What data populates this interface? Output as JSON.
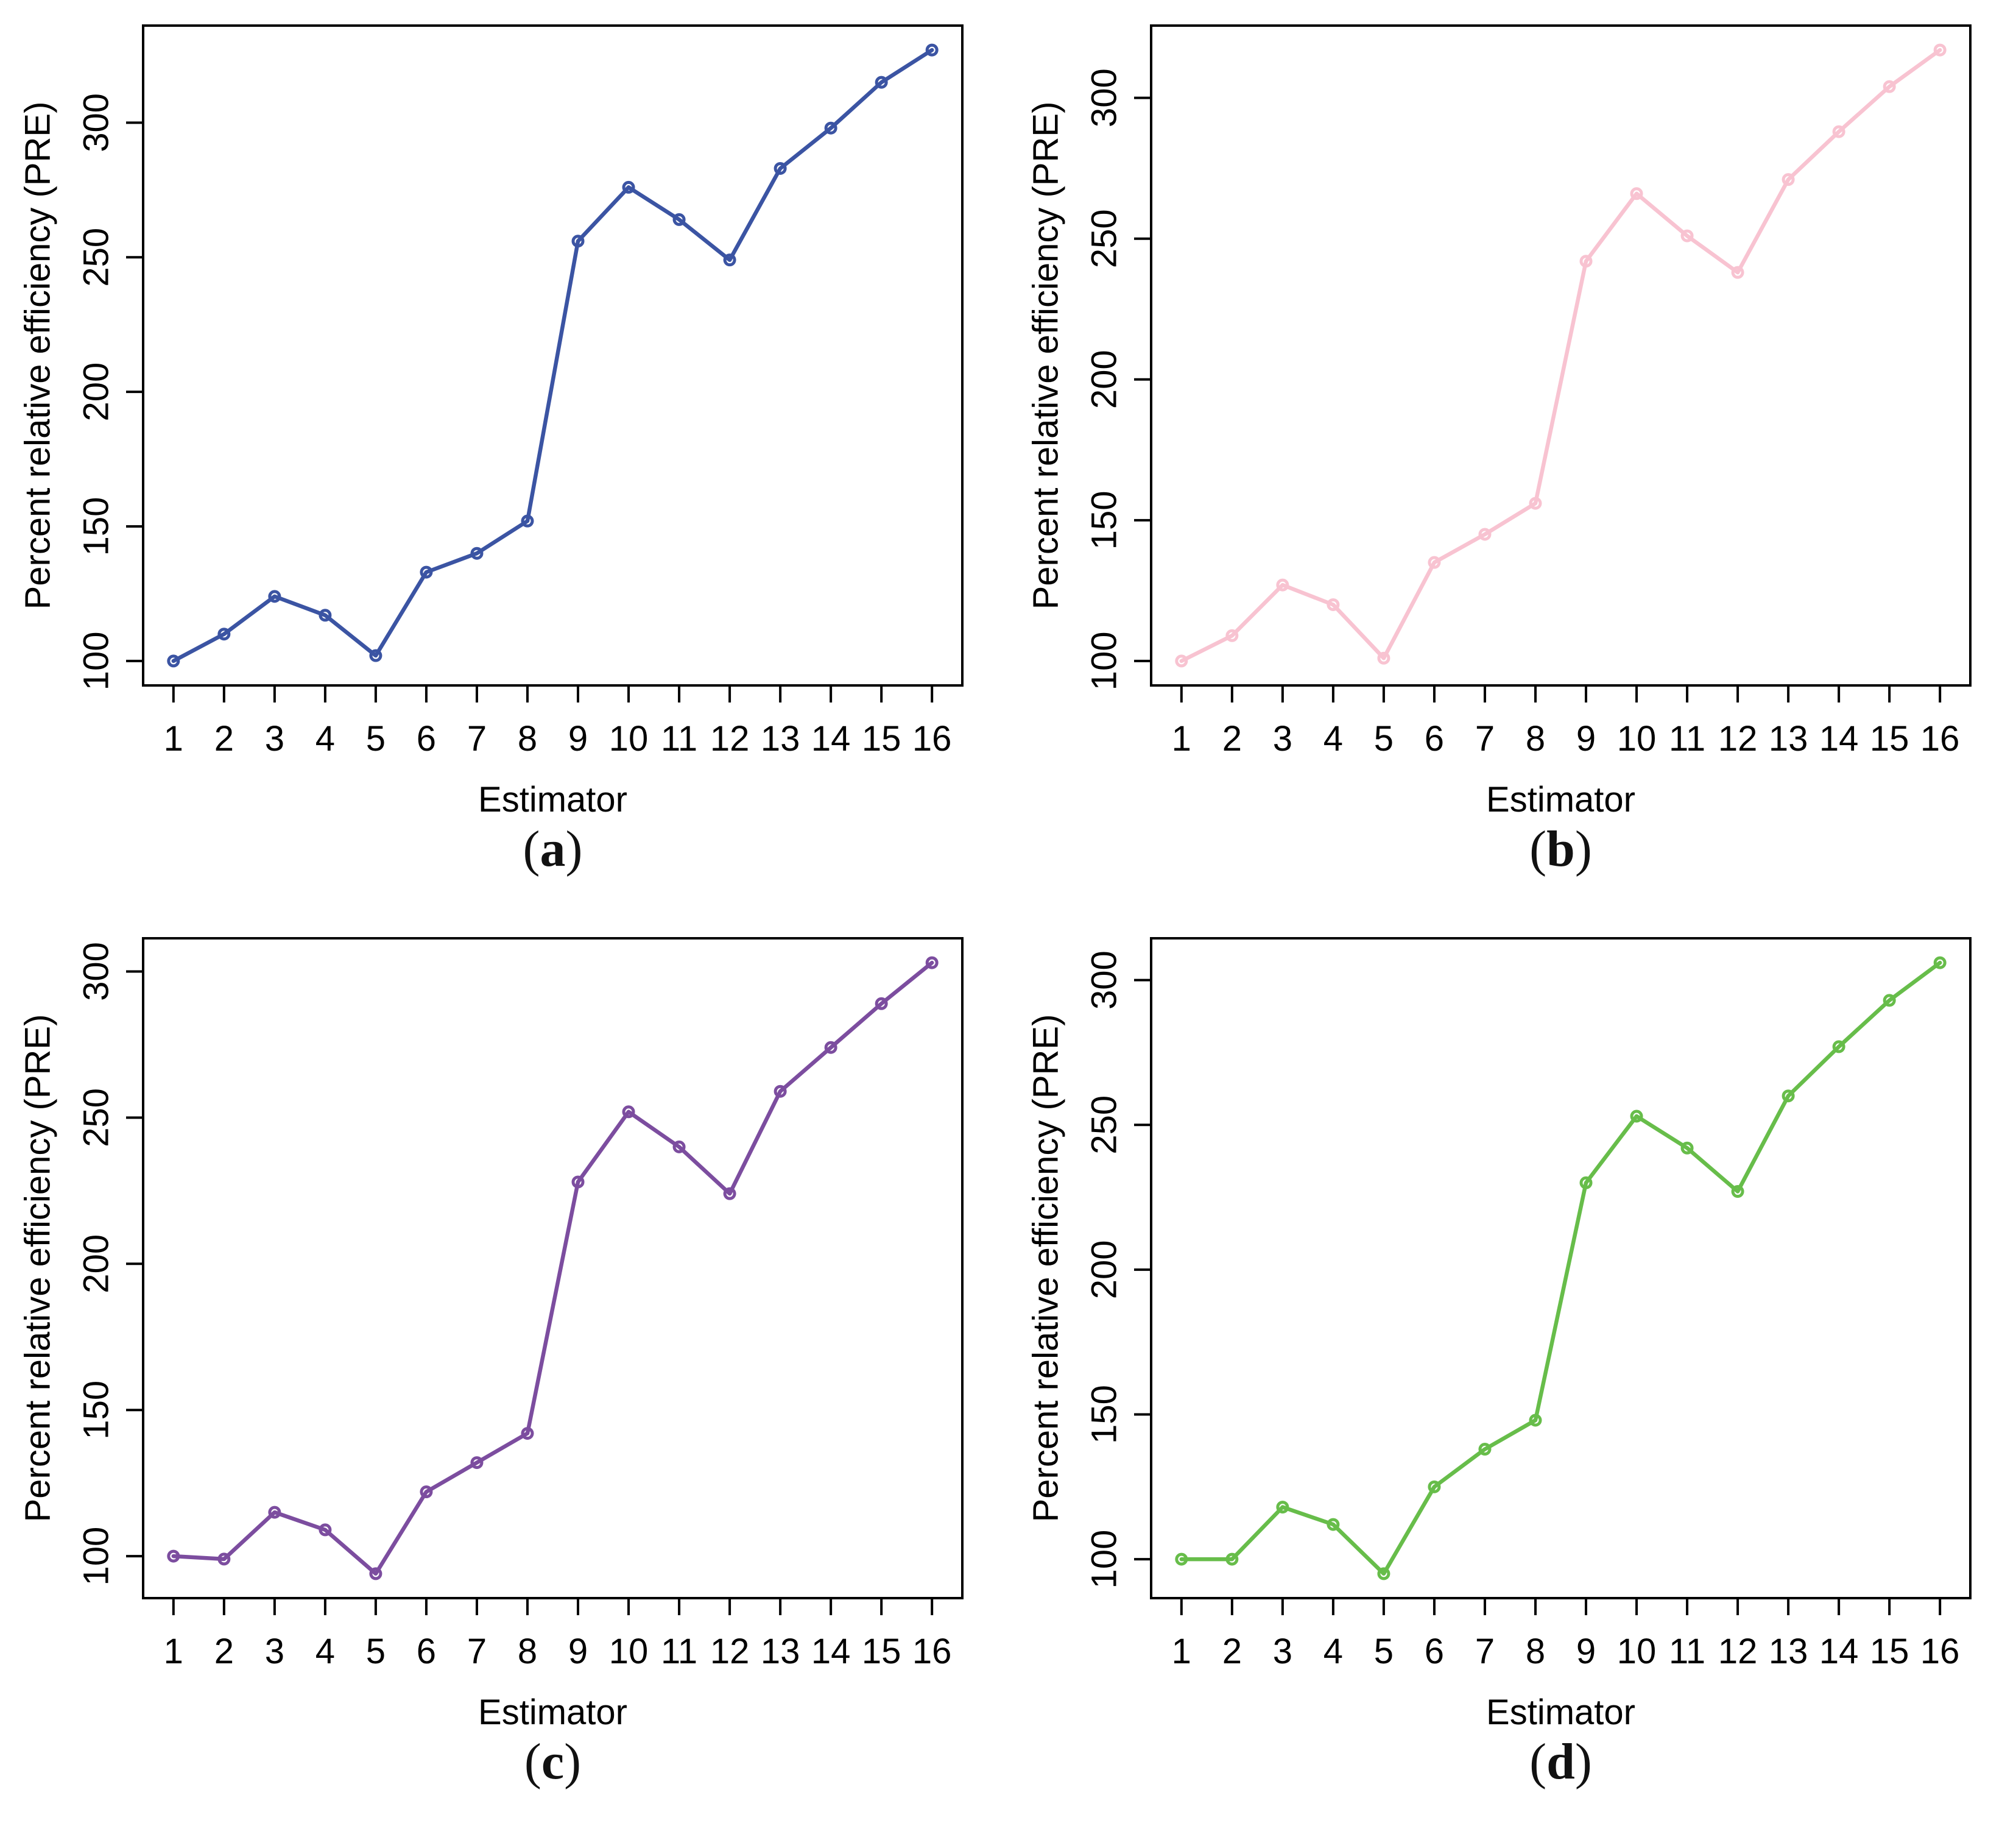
{
  "figure": {
    "caption_open": "(",
    "caption_close": ")",
    "axis_padding_frac": 0.04
  },
  "chart_data": [
    {
      "type": "line",
      "panel": "a",
      "color": "#3B54A3",
      "marker": "open-circle",
      "title": "",
      "xlabel": "Estimator",
      "ylabel": "Percent relative efficiency (PRE)",
      "x": [
        1,
        2,
        3,
        4,
        5,
        6,
        7,
        8,
        9,
        10,
        11,
        12,
        13,
        14,
        15,
        16
      ],
      "values": [
        100,
        110,
        124,
        117,
        102,
        133,
        140,
        152,
        256,
        276,
        264,
        249,
        283,
        298,
        315,
        327
      ],
      "xticks": [
        1,
        2,
        3,
        4,
        5,
        6,
        7,
        8,
        9,
        10,
        11,
        12,
        13,
        14,
        15,
        16
      ],
      "yticks": [
        100,
        150,
        200,
        250,
        300
      ],
      "xlim": [
        0.4,
        16.6
      ],
      "grid": false,
      "legend": null
    },
    {
      "type": "line",
      "panel": "b",
      "color": "#F8C3D1",
      "marker": "open-circle",
      "title": "",
      "xlabel": "Estimator",
      "ylabel": "Percent relative efficiency (PRE)",
      "x": [
        1,
        2,
        3,
        4,
        5,
        6,
        7,
        8,
        9,
        10,
        11,
        12,
        13,
        14,
        15,
        16
      ],
      "values": [
        100,
        109,
        127,
        120,
        101,
        135,
        145,
        156,
        242,
        266,
        251,
        238,
        271,
        288,
        304,
        317
      ],
      "xticks": [
        1,
        2,
        3,
        4,
        5,
        6,
        7,
        8,
        9,
        10,
        11,
        12,
        13,
        14,
        15,
        16
      ],
      "yticks": [
        100,
        150,
        200,
        250,
        300
      ],
      "xlim": [
        0.4,
        16.6
      ],
      "grid": false,
      "legend": null
    },
    {
      "type": "line",
      "panel": "c",
      "color": "#7C4D9F",
      "marker": "open-circle",
      "title": "",
      "xlabel": "Estimator",
      "ylabel": "Percent relative efficiency (PRE)",
      "x": [
        1,
        2,
        3,
        4,
        5,
        6,
        7,
        8,
        9,
        10,
        11,
        12,
        13,
        14,
        15,
        16
      ],
      "values": [
        100,
        99,
        115,
        109,
        94,
        122,
        132,
        142,
        228,
        252,
        240,
        224,
        259,
        274,
        289,
        303
      ],
      "xticks": [
        1,
        2,
        3,
        4,
        5,
        6,
        7,
        8,
        9,
        10,
        11,
        12,
        13,
        14,
        15,
        16
      ],
      "yticks": [
        100,
        150,
        200,
        250,
        300
      ],
      "xlim": [
        0.4,
        16.6
      ],
      "grid": false,
      "legend": null
    },
    {
      "type": "line",
      "panel": "d",
      "color": "#67BD4A",
      "marker": "open-circle",
      "title": "",
      "xlabel": "Estimator",
      "ylabel": "Percent relative efficiency (PRE)",
      "x": [
        1,
        2,
        3,
        4,
        5,
        6,
        7,
        8,
        9,
        10,
        11,
        12,
        13,
        14,
        15,
        16
      ],
      "values": [
        100,
        100,
        118,
        112,
        95,
        125,
        138,
        148,
        230,
        253,
        242,
        227,
        260,
        277,
        293,
        306
      ],
      "xticks": [
        1,
        2,
        3,
        4,
        5,
        6,
        7,
        8,
        9,
        10,
        11,
        12,
        13,
        14,
        15,
        16
      ],
      "yticks": [
        100,
        150,
        200,
        250,
        300
      ],
      "xlim": [
        0.4,
        16.6
      ],
      "grid": false,
      "legend": null
    }
  ]
}
